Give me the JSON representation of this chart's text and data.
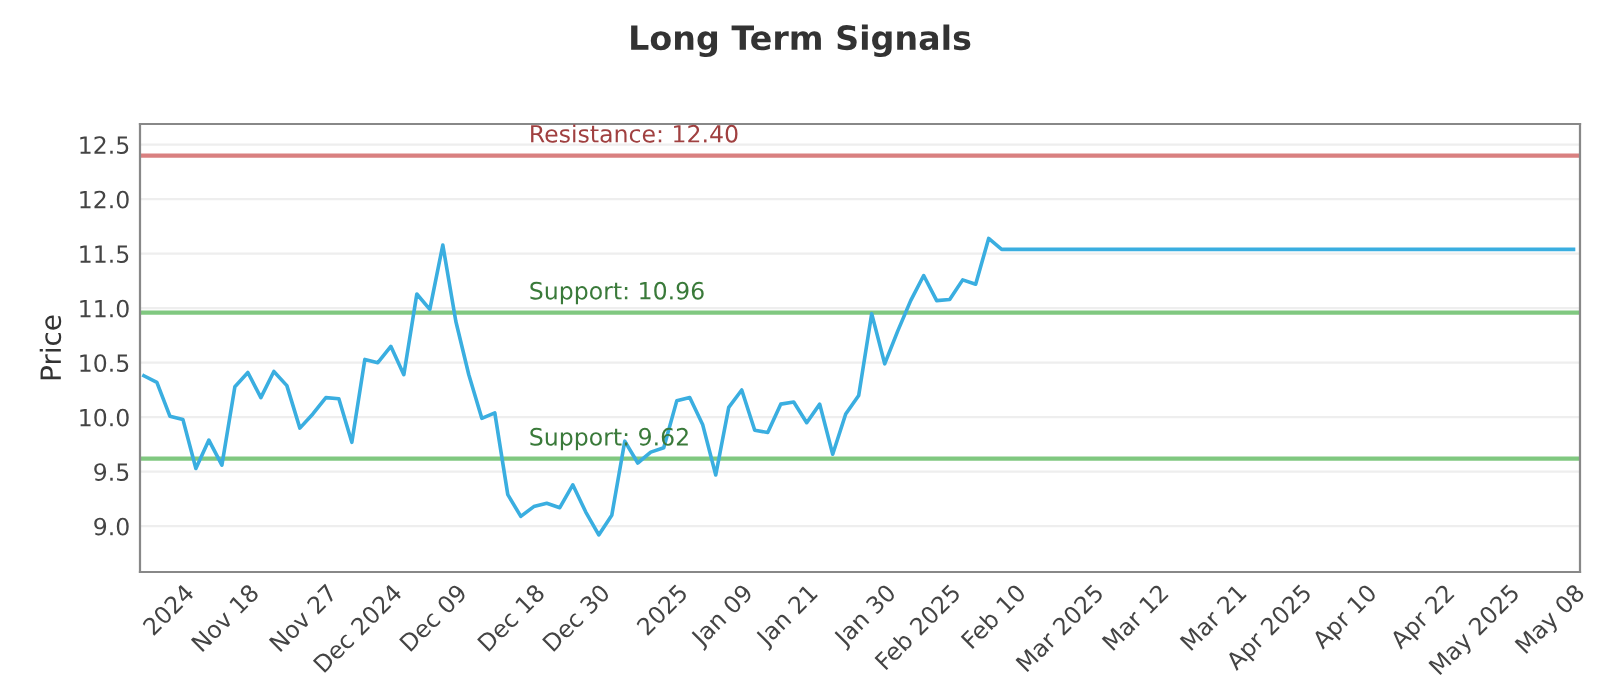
{
  "chart_data": {
    "type": "line",
    "title": "Long Term Signals",
    "ylabel": "Price",
    "categories": [
      null,
      null,
      null,
      "2024",
      null,
      null,
      null,
      null,
      "Nov 18",
      null,
      null,
      null,
      null,
      null,
      "Nov 27",
      null,
      null,
      null,
      null,
      "Dec 2024",
      null,
      null,
      null,
      null,
      "Dec 09",
      null,
      null,
      null,
      null,
      null,
      "Dec 18",
      null,
      null,
      null,
      null,
      "Dec 30",
      null,
      null,
      null,
      null,
      null,
      "2025",
      null,
      null,
      null,
      null,
      "Jan 09",
      null,
      null,
      null,
      null,
      "Jan 21",
      null,
      null,
      null,
      null,
      null,
      "Jan 30",
      null,
      null,
      null,
      null,
      "Feb 2025",
      null,
      null,
      null,
      null,
      "Feb 10",
      null,
      null,
      null,
      null,
      null,
      "Mar 2025",
      null,
      null,
      null,
      null,
      "Mar 12",
      null,
      null,
      null,
      null,
      null,
      "Mar 21",
      null,
      null,
      null,
      null,
      "Apr 2025",
      null,
      null,
      null,
      null,
      "Apr 10",
      null,
      null,
      null,
      null,
      null,
      "Apr 22",
      null,
      null,
      null,
      null,
      "May 2025",
      null,
      null,
      null,
      null,
      "May 08"
    ],
    "series": [
      {
        "color": "#3aaee0",
        "values": [
          10.38,
          10.32,
          10.01,
          9.98,
          9.53,
          9.79,
          9.56,
          10.28,
          10.41,
          10.18,
          10.42,
          10.29,
          9.9,
          10.03,
          10.18,
          10.17,
          9.77,
          10.53,
          10.5,
          10.65,
          10.39,
          11.13,
          10.99,
          11.58,
          10.88,
          10.39,
          9.99,
          10.04,
          9.29,
          9.09,
          9.18,
          9.21,
          9.17,
          9.38,
          9.13,
          8.92,
          9.1,
          9.78,
          9.58,
          9.68,
          9.72,
          10.15,
          10.18,
          9.93,
          9.47,
          10.09,
          10.25,
          9.88,
          9.86,
          10.12,
          10.14,
          9.95,
          10.12,
          9.66,
          10.03,
          10.2,
          10.95,
          10.49,
          10.79,
          11.07,
          11.3,
          11.07,
          11.08,
          11.26,
          11.22,
          11.64,
          11.54,
          11.54,
          11.54,
          11.54,
          11.54,
          11.54,
          11.54,
          11.54,
          11.54,
          11.54,
          11.54,
          11.54,
          11.54,
          11.54,
          11.54,
          11.54,
          11.54,
          11.54,
          11.54,
          11.54,
          11.54,
          11.54,
          11.54,
          11.54,
          11.54,
          11.54,
          11.54,
          11.54,
          11.54,
          11.54,
          11.54,
          11.54,
          11.54,
          11.54,
          11.54,
          11.54,
          11.54,
          11.54,
          11.54,
          11.54,
          11.54,
          11.54,
          11.54,
          11.54,
          11.54
        ]
      }
    ],
    "ylim": [
      8.58,
      12.69
    ],
    "yticks": [
      {
        "value": 9,
        "label": "9.0"
      },
      9.5,
      {
        "value": 10,
        "label": "10.0"
      },
      10.5,
      {
        "value": 11,
        "label": "11.0"
      },
      11.5,
      {
        "value": 12,
        "label": "12.0"
      },
      12.5
    ],
    "grid": "y",
    "ref_lines": [
      {
        "axis": "y",
        "value": 12.4,
        "label": "Resistance: 12.40",
        "color": "#d98080"
      },
      {
        "axis": "y",
        "value": 10.96,
        "label": "Support: 10.96",
        "color": "#80c880"
      },
      {
        "axis": "y",
        "value": 9.62,
        "label": "Support: 9.62",
        "color": "#80c880"
      }
    ]
  }
}
